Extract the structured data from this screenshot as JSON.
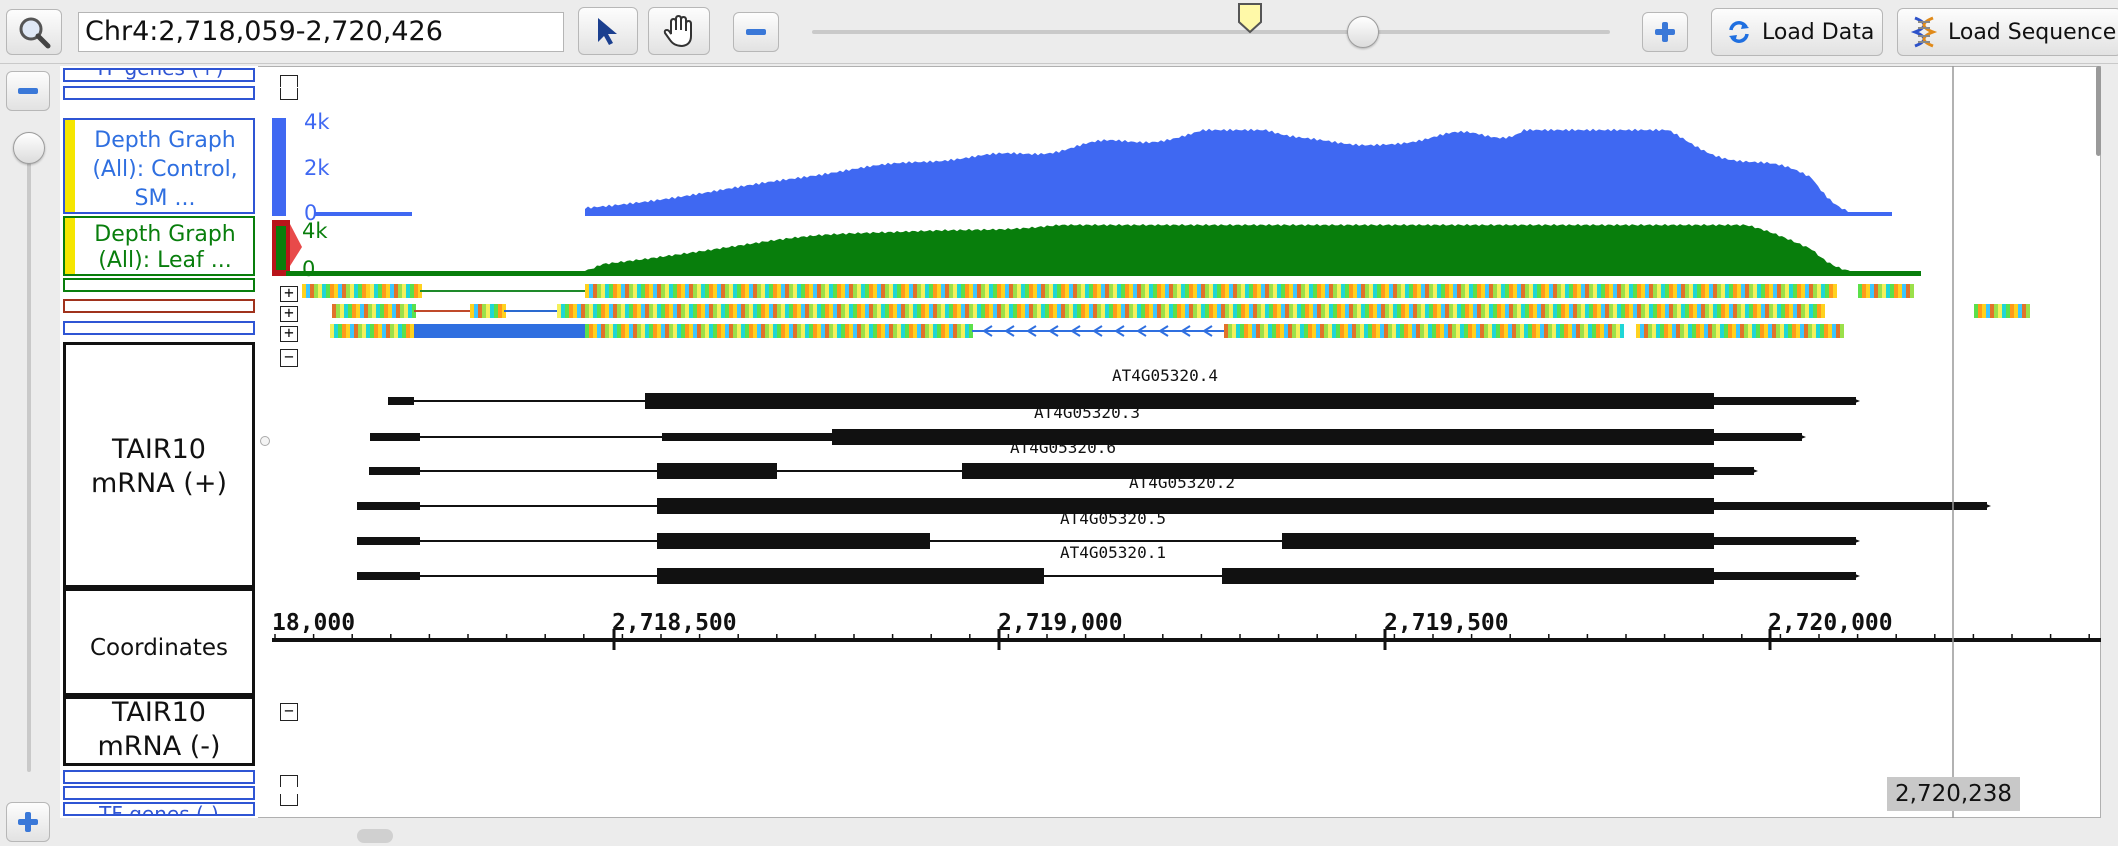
{
  "toolbar": {
    "locus": "Chr4:2,718,059-2,720,426",
    "load_data": "Load Data",
    "load_sequence": "Load Sequence",
    "zoom": 0.69
  },
  "labels": {
    "tf_top": "TF genes (+)",
    "depth_control": "Depth Graph (All): Control, SM ...",
    "depth_leaf": "Depth Graph (All):  Leaf  ...",
    "mrna_plus": "TAIR10 mRNA (+)",
    "coordinates": "Coordinates",
    "mrna_minus": "TAIR10 mRNA (-)",
    "tf_bottom": "TF genes (-)"
  },
  "depth": {
    "control": {
      "ticks": [
        "4k",
        "2k",
        "0"
      ],
      "color": "#3f68f2"
    },
    "leaf": {
      "ticks": [
        "4k",
        "0"
      ],
      "color": "#087e0c"
    }
  },
  "transcripts": [
    {
      "name": "AT4G05320.4"
    },
    {
      "name": "AT4G05320.3"
    },
    {
      "name": "AT4G05320.6"
    },
    {
      "name": "AT4G05320.2"
    },
    {
      "name": "AT4G05320.5"
    },
    {
      "name": "AT4G05320.1"
    }
  ],
  "coordinates": [
    "18,000",
    "2,718,500",
    "2,719,000",
    "2,719,500",
    "2,720,000"
  ],
  "readout": "2,720,238",
  "colors": {
    "accent": "#2f6fd6",
    "depth_control": "#3f68f2",
    "depth_leaf": "#087e0c"
  }
}
